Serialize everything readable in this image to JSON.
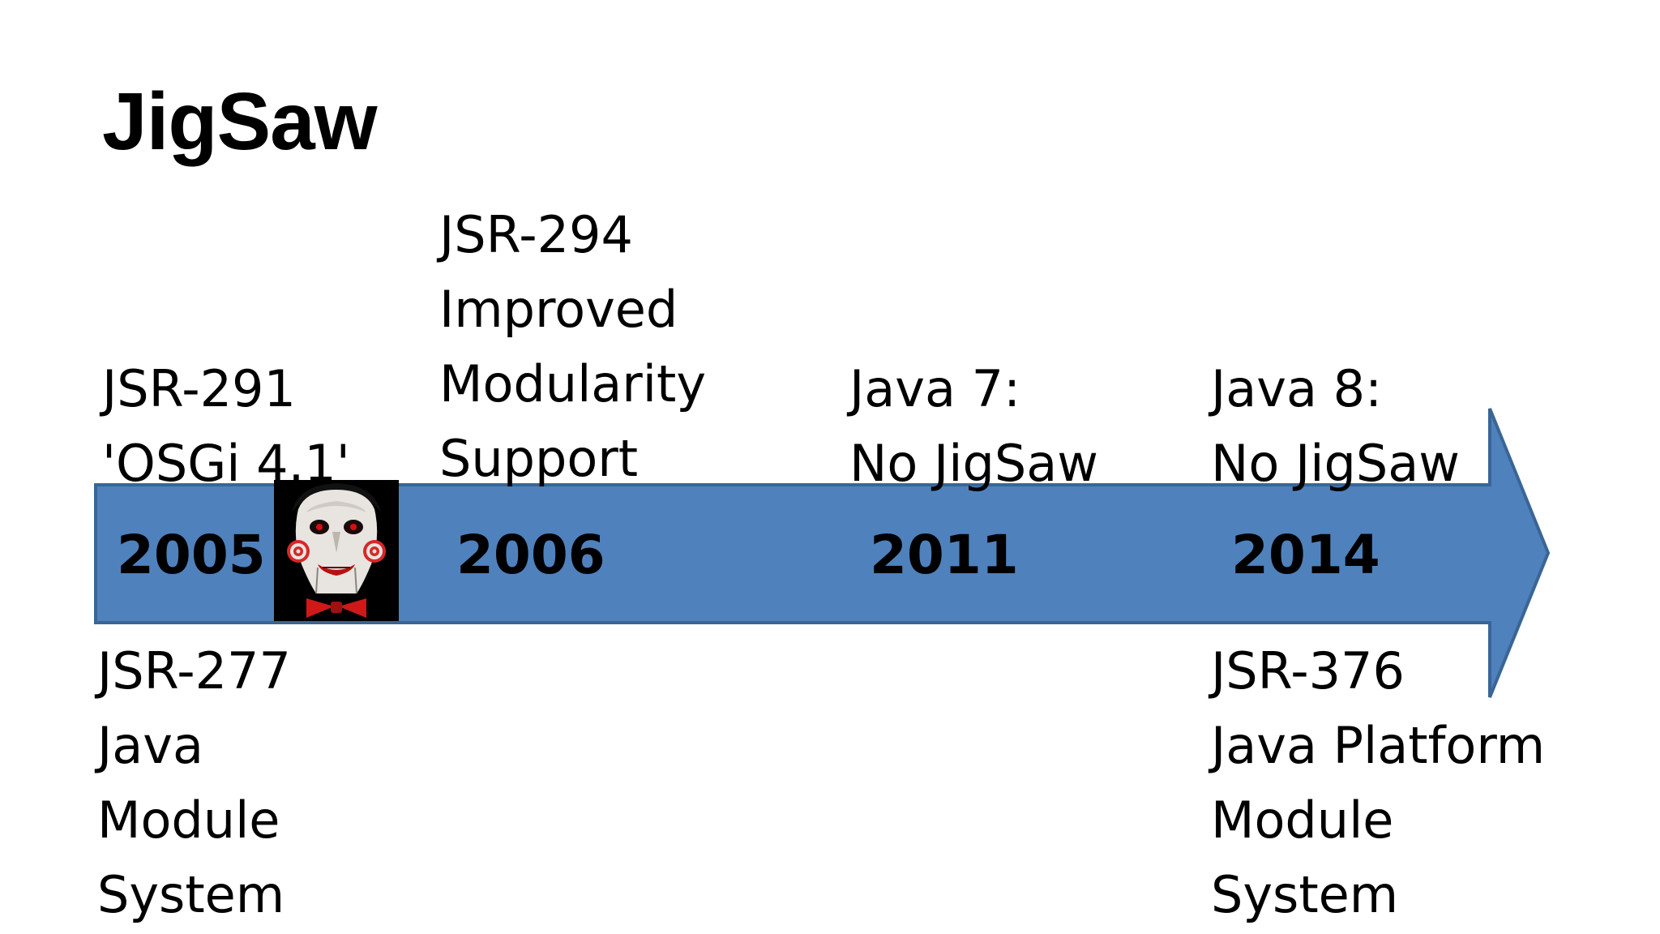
{
  "title": "JigSaw",
  "timeline": {
    "arrow_color": "#4f81bd",
    "arrow_outline": "#3a6596",
    "years": [
      "2005",
      "2006",
      "2011",
      "2014"
    ],
    "image_icon": "jigsaw-puppet-face"
  },
  "notes": {
    "jsr291": [
      "JSR-291",
      "'OSGi 4.1'"
    ],
    "jsr294": [
      "JSR-294",
      "Improved",
      "Modularity",
      "Support"
    ],
    "java7": [
      "Java 7:",
      "No JigSaw"
    ],
    "java8": [
      "Java 8:",
      "No JigSaw"
    ],
    "jsr277": [
      "JSR-277",
      "Java",
      "Module",
      "System"
    ],
    "jsr376": [
      "JSR-376",
      "Java Platform",
      "Module",
      "System"
    ]
  }
}
